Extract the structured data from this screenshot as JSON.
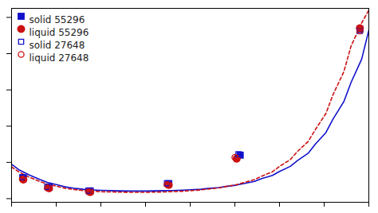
{
  "chart_data": {
    "type": "scatter",
    "xlim": [
      0.0,
      1.0
    ],
    "ylim": [
      -0.02,
      1.05
    ],
    "xticks": [
      0.0,
      0.125,
      0.25,
      0.375,
      0.5,
      0.625,
      0.75,
      0.875,
      1.0
    ],
    "yticks": [
      0.0,
      0.2,
      0.4,
      0.6,
      0.8,
      1.0
    ],
    "tick_labels": false,
    "grid": false,
    "legend": "upper left",
    "series": [
      {
        "type": "line",
        "color": "#1111cc",
        "line_style": "solid",
        "x": [
          0.0,
          0.02,
          0.05,
          0.08,
          0.1,
          0.13,
          0.15,
          0.18,
          0.2,
          0.23,
          0.25,
          0.28,
          0.3,
          0.33,
          0.35,
          0.38,
          0.4,
          0.43,
          0.45,
          0.48,
          0.5,
          0.53,
          0.55,
          0.58,
          0.6,
          0.63,
          0.65,
          0.68,
          0.7,
          0.73,
          0.75,
          0.78,
          0.8,
          0.83,
          0.85,
          0.88,
          0.9,
          0.93,
          0.95,
          0.98,
          1.0
        ],
        "values": [
          0.19,
          0.16,
          0.13,
          0.105,
          0.09,
          0.075,
          0.065,
          0.056,
          0.052,
          0.048,
          0.046,
          0.044,
          0.043,
          0.042,
          0.042,
          0.042,
          0.043,
          0.044,
          0.045,
          0.047,
          0.049,
          0.052,
          0.056,
          0.061,
          0.067,
          0.075,
          0.083,
          0.095,
          0.11,
          0.128,
          0.15,
          0.178,
          0.21,
          0.25,
          0.3,
          0.365,
          0.44,
          0.535,
          0.64,
          0.77,
          0.93
        ]
      },
      {
        "type": "line",
        "color": "#cc1111",
        "line_style": "dashed",
        "x": [
          0.0,
          0.02,
          0.05,
          0.08,
          0.1,
          0.13,
          0.15,
          0.18,
          0.2,
          0.23,
          0.25,
          0.28,
          0.3,
          0.33,
          0.35,
          0.38,
          0.4,
          0.43,
          0.45,
          0.48,
          0.5,
          0.53,
          0.55,
          0.58,
          0.6,
          0.63,
          0.65,
          0.68,
          0.7,
          0.73,
          0.75,
          0.78,
          0.8,
          0.83,
          0.85,
          0.88,
          0.9,
          0.93,
          0.95,
          0.98,
          1.0
        ],
        "values": [
          0.175,
          0.148,
          0.118,
          0.094,
          0.08,
          0.067,
          0.057,
          0.049,
          0.045,
          0.041,
          0.038,
          0.037,
          0.036,
          0.035,
          0.035,
          0.035,
          0.036,
          0.037,
          0.039,
          0.041,
          0.044,
          0.048,
          0.053,
          0.059,
          0.067,
          0.077,
          0.089,
          0.105,
          0.124,
          0.148,
          0.178,
          0.215,
          0.26,
          0.315,
          0.38,
          0.47,
          0.575,
          0.7,
          0.84,
          0.97,
          1.04
        ]
      },
      {
        "name": "solid 55296",
        "type": "scatter",
        "color": "#1111cc",
        "marker": "filled_square",
        "x": [
          0.033,
          0.105,
          0.22,
          0.44,
          0.64,
          0.975
        ],
        "values": [
          0.115,
          0.063,
          0.043,
          0.083,
          0.24,
          0.935
        ]
      },
      {
        "name": "liquid 55296",
        "type": "scatter",
        "color": "#cc1111",
        "marker": "filled_circle",
        "x": [
          0.033,
          0.105,
          0.22,
          0.44,
          0.63,
          0.975
        ],
        "values": [
          0.105,
          0.057,
          0.036,
          0.075,
          0.22,
          0.94
        ]
      },
      {
        "name": "solid 27648",
        "type": "scatter",
        "color": "#1111cc",
        "marker": "open_square",
        "x": [
          0.03,
          0.1,
          0.215,
          0.435,
          0.635,
          0.975
        ],
        "values": [
          0.118,
          0.065,
          0.044,
          0.085,
          0.245,
          0.925
        ]
      },
      {
        "name": "liquid 27648",
        "type": "scatter",
        "color": "#cc1111",
        "marker": "open_circle",
        "x": [
          0.03,
          0.1,
          0.215,
          0.435,
          0.625,
          0.975
        ],
        "values": [
          0.108,
          0.059,
          0.038,
          0.078,
          0.228,
          0.925
        ]
      }
    ]
  }
}
